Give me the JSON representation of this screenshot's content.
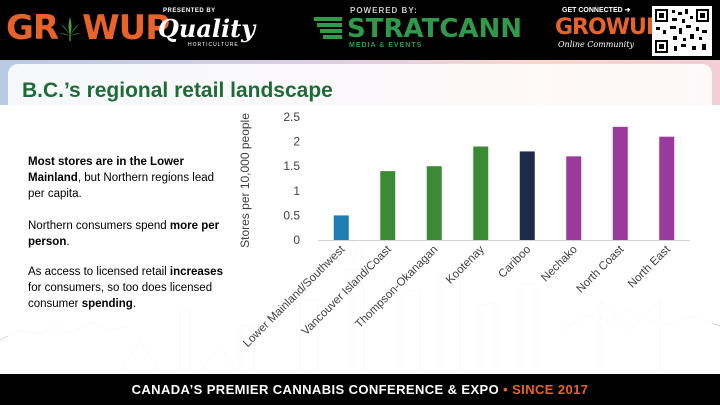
{
  "header": {
    "brand_left": "GROWUP",
    "presented_by": "PRESENTED BY",
    "sponsor": "Quality",
    "sponsor_sub": "HORTICULTURE",
    "powered_by": "POWERED BY:",
    "powered_brand": "STRATCANN",
    "powered_sub": "MEDIA & EVENTS",
    "get_connected": "GET CONNECTED",
    "brand_right": "GROWUP",
    "online_community": "Online Community"
  },
  "slide": {
    "title": "B.C.’s regional retail landscape",
    "p1_bold": "Most stores are in the Lower Mainland",
    "p1_rest": ", but Northern regions lead per capita.",
    "p2_text": "Northern consumers spend ",
    "p2_bold": "more per person",
    "p2_end": ".",
    "p3_text": "As access to licensed retail ",
    "p3_bold1": "increases",
    "p3_mid": " for consumers, so too does licensed consumer ",
    "p3_bold2": "spending",
    "p3_end": "."
  },
  "chart_data": {
    "type": "bar",
    "title": "",
    "xlabel": "",
    "ylabel": "Stores per 10,000 people",
    "ylim": [
      0,
      2.5
    ],
    "yticks": [
      "0",
      "0.5",
      "1",
      "1.5",
      "2",
      "2.5"
    ],
    "grid": false,
    "categories": [
      "Lower Mainland/Southwest",
      "Vancouver Island/Coast",
      "Thompson-Okanagan",
      "Kootenay",
      "Cariboo",
      "Nechako",
      "North Coast",
      "North East"
    ],
    "values": [
      0.5,
      1.4,
      1.5,
      1.9,
      1.8,
      1.7,
      2.3,
      2.1
    ],
    "colors": [
      "#1f7fb0",
      "#3b8a34",
      "#3b8a34",
      "#3b8a34",
      "#1c2c48",
      "#9a3a9c",
      "#9a3a9c",
      "#9a3a9c"
    ]
  },
  "footer": {
    "main": "CANADA’S PREMIER CANNABIS CONFERENCE & EXPO",
    "sep": " • ",
    "since": "SINCE 2017"
  }
}
